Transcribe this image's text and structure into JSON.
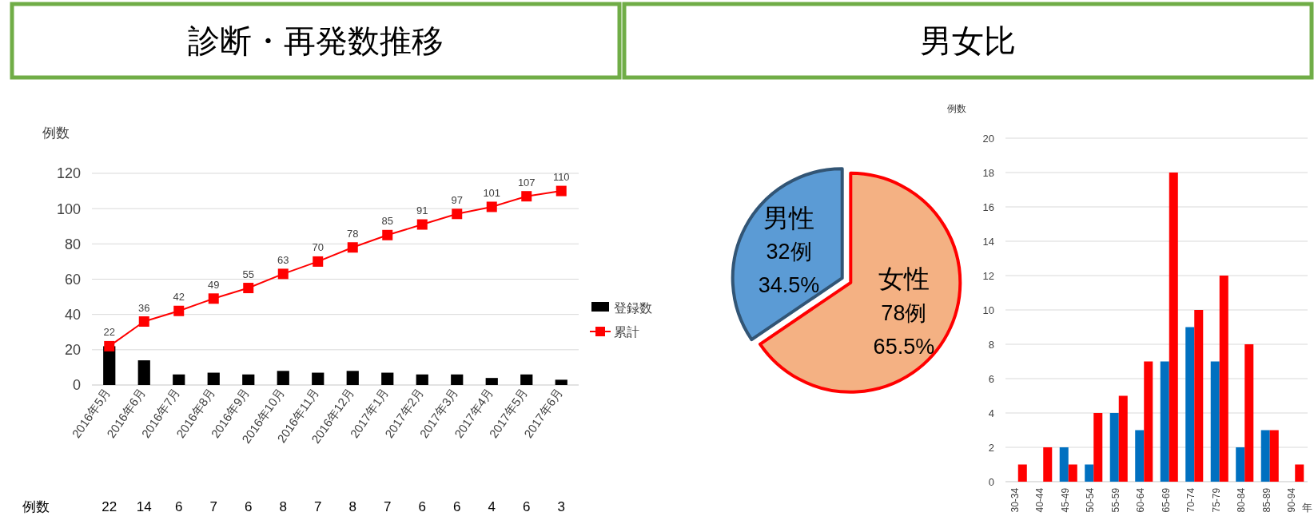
{
  "chart_data": [
    {
      "type": "bar",
      "title": "診断・再発数推移",
      "ylabel": "例数",
      "categories": [
        "2016年5月",
        "2016年6月",
        "2016年7月",
        "2016年8月",
        "2016年9月",
        "2016年10月",
        "2016年11月",
        "2016年12月",
        "2017年1月",
        "2017年2月",
        "2017年3月",
        "2017年4月",
        "2017年5月",
        "2017年6月"
      ],
      "ylim": [
        0,
        120
      ],
      "yticks": [
        0,
        20,
        40,
        60,
        80,
        100,
        120
      ],
      "grid": "y",
      "legend": "right",
      "marker": "square",
      "data_labels": true,
      "annotations": [
        "例数"
      ],
      "series": [
        {
          "name": "登録数",
          "type": "bar",
          "color": "#000000",
          "values": [
            22,
            14,
            6,
            7,
            6,
            8,
            7,
            8,
            7,
            6,
            6,
            4,
            6,
            3
          ]
        },
        {
          "name": "累計",
          "type": "line",
          "color": "#ff0000",
          "values": [
            22,
            36,
            42,
            49,
            55,
            63,
            70,
            78,
            85,
            91,
            97,
            101,
            107,
            110
          ]
        }
      ]
    },
    {
      "type": "pie",
      "title": "男女比",
      "categories": [
        "男性",
        "女性"
      ],
      "values": [
        34.5,
        65.5
      ],
      "colors": [
        "#5b9bd5",
        "#f4b183"
      ],
      "value_labels": [
        "32例\n34.5%",
        "78例\n65.5%"
      ]
    },
    {
      "type": "bar",
      "ylabel": "例数",
      "xlabel": "年",
      "categories": [
        "30-34",
        "40-44",
        "45-49",
        "50-54",
        "55-59",
        "60-64",
        "65-69",
        "70-74",
        "75-79",
        "80-84",
        "85-89",
        "90-94"
      ],
      "ylim": [
        0,
        20
      ],
      "yticks": [
        0,
        2,
        4,
        6,
        8,
        10,
        12,
        14,
        16,
        18,
        20
      ],
      "grid": "y",
      "series": [
        {
          "color": "#0070c0",
          "values": [
            0,
            0,
            2,
            1,
            4,
            3,
            7,
            9,
            7,
            2,
            3,
            0
          ]
        },
        {
          "color": "#ff0000",
          "values": [
            1,
            2,
            1,
            4,
            5,
            7,
            18,
            10,
            12,
            8,
            3,
            1
          ]
        }
      ]
    }
  ]
}
